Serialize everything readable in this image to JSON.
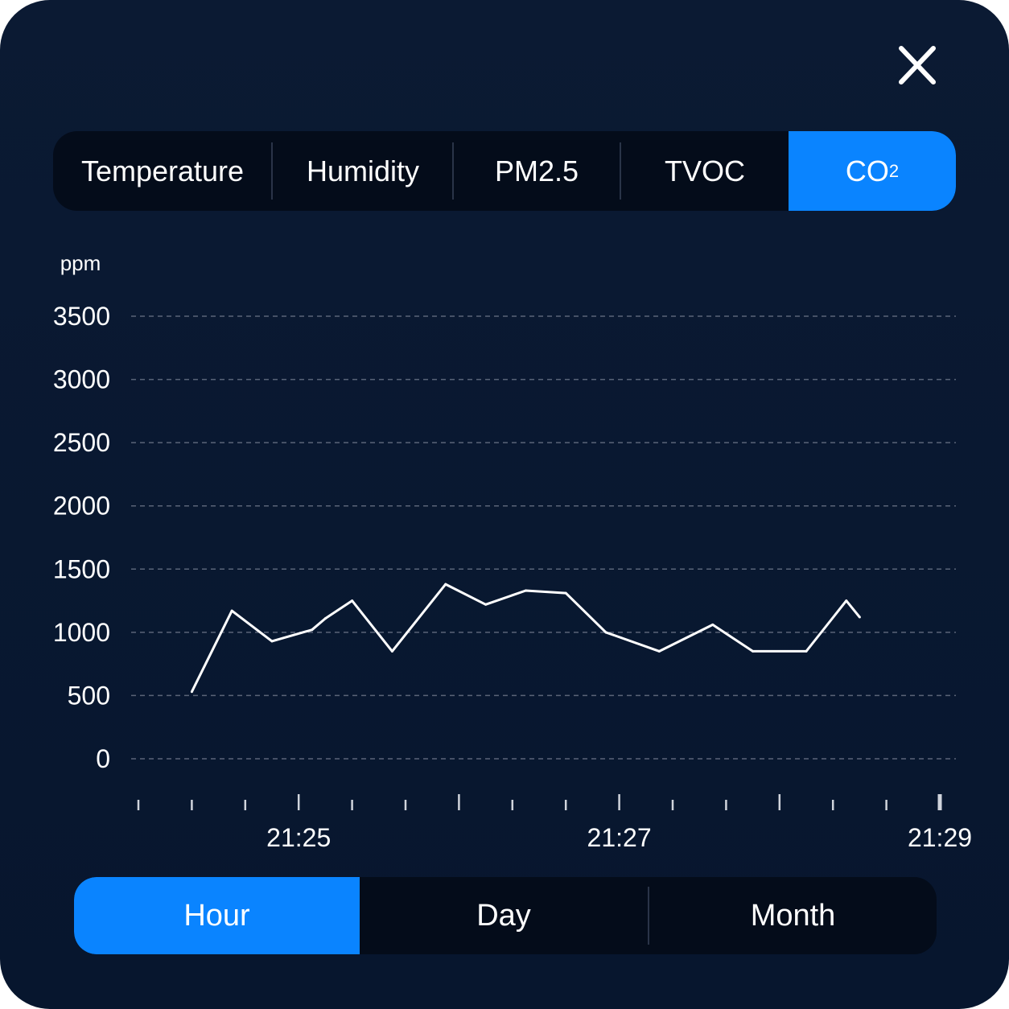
{
  "close": {
    "icon": "close-icon"
  },
  "tabs": [
    {
      "label": "Temperature",
      "active": false
    },
    {
      "label": "Humidity",
      "active": false
    },
    {
      "label": "PM2.5",
      "active": false
    },
    {
      "label": "TVOC",
      "active": false
    },
    {
      "label": "CO",
      "sub": "2",
      "active": true
    }
  ],
  "range_options": [
    {
      "label": "Hour",
      "active": true
    },
    {
      "label": "Day",
      "active": false
    },
    {
      "label": "Month",
      "active": false
    }
  ],
  "colors": {
    "accent": "#0a84ff",
    "background": "#0b1a33",
    "bar": "#040c1a",
    "line": "#ffffff",
    "grid": "#5a6478"
  },
  "chart_data": {
    "type": "line",
    "unit_label": "ppm",
    "ylim": [
      0,
      3500
    ],
    "yticks": [
      3500,
      3000,
      2500,
      2000,
      1500,
      1000,
      500,
      0
    ],
    "grid": true,
    "grid_style": "dashed",
    "xlim_minutes": [
      "21:24",
      "21:29"
    ],
    "xtick_labels": [
      "21:25",
      "21:27",
      "21:29"
    ],
    "series": [
      {
        "points": [
          {
            "x": "21:24:20",
            "y": 530
          },
          {
            "x": "21:24:35",
            "y": 1170
          },
          {
            "x": "21:24:50",
            "y": 930
          },
          {
            "x": "21:25:05",
            "y": 1020
          },
          {
            "x": "21:25:10",
            "y": 1110
          },
          {
            "x": "21:25:20",
            "y": 1250
          },
          {
            "x": "21:25:35",
            "y": 850
          },
          {
            "x": "21:25:55",
            "y": 1380
          },
          {
            "x": "21:26:10",
            "y": 1220
          },
          {
            "x": "21:26:25",
            "y": 1330
          },
          {
            "x": "21:26:40",
            "y": 1310
          },
          {
            "x": "21:26:55",
            "y": 1000
          },
          {
            "x": "21:27:15",
            "y": 850
          },
          {
            "x": "21:27:35",
            "y": 1060
          },
          {
            "x": "21:27:50",
            "y": 850
          },
          {
            "x": "21:28:10",
            "y": 850
          },
          {
            "x": "21:28:25",
            "y": 1250
          },
          {
            "x": "21:28:30",
            "y": 1120
          }
        ]
      }
    ]
  }
}
